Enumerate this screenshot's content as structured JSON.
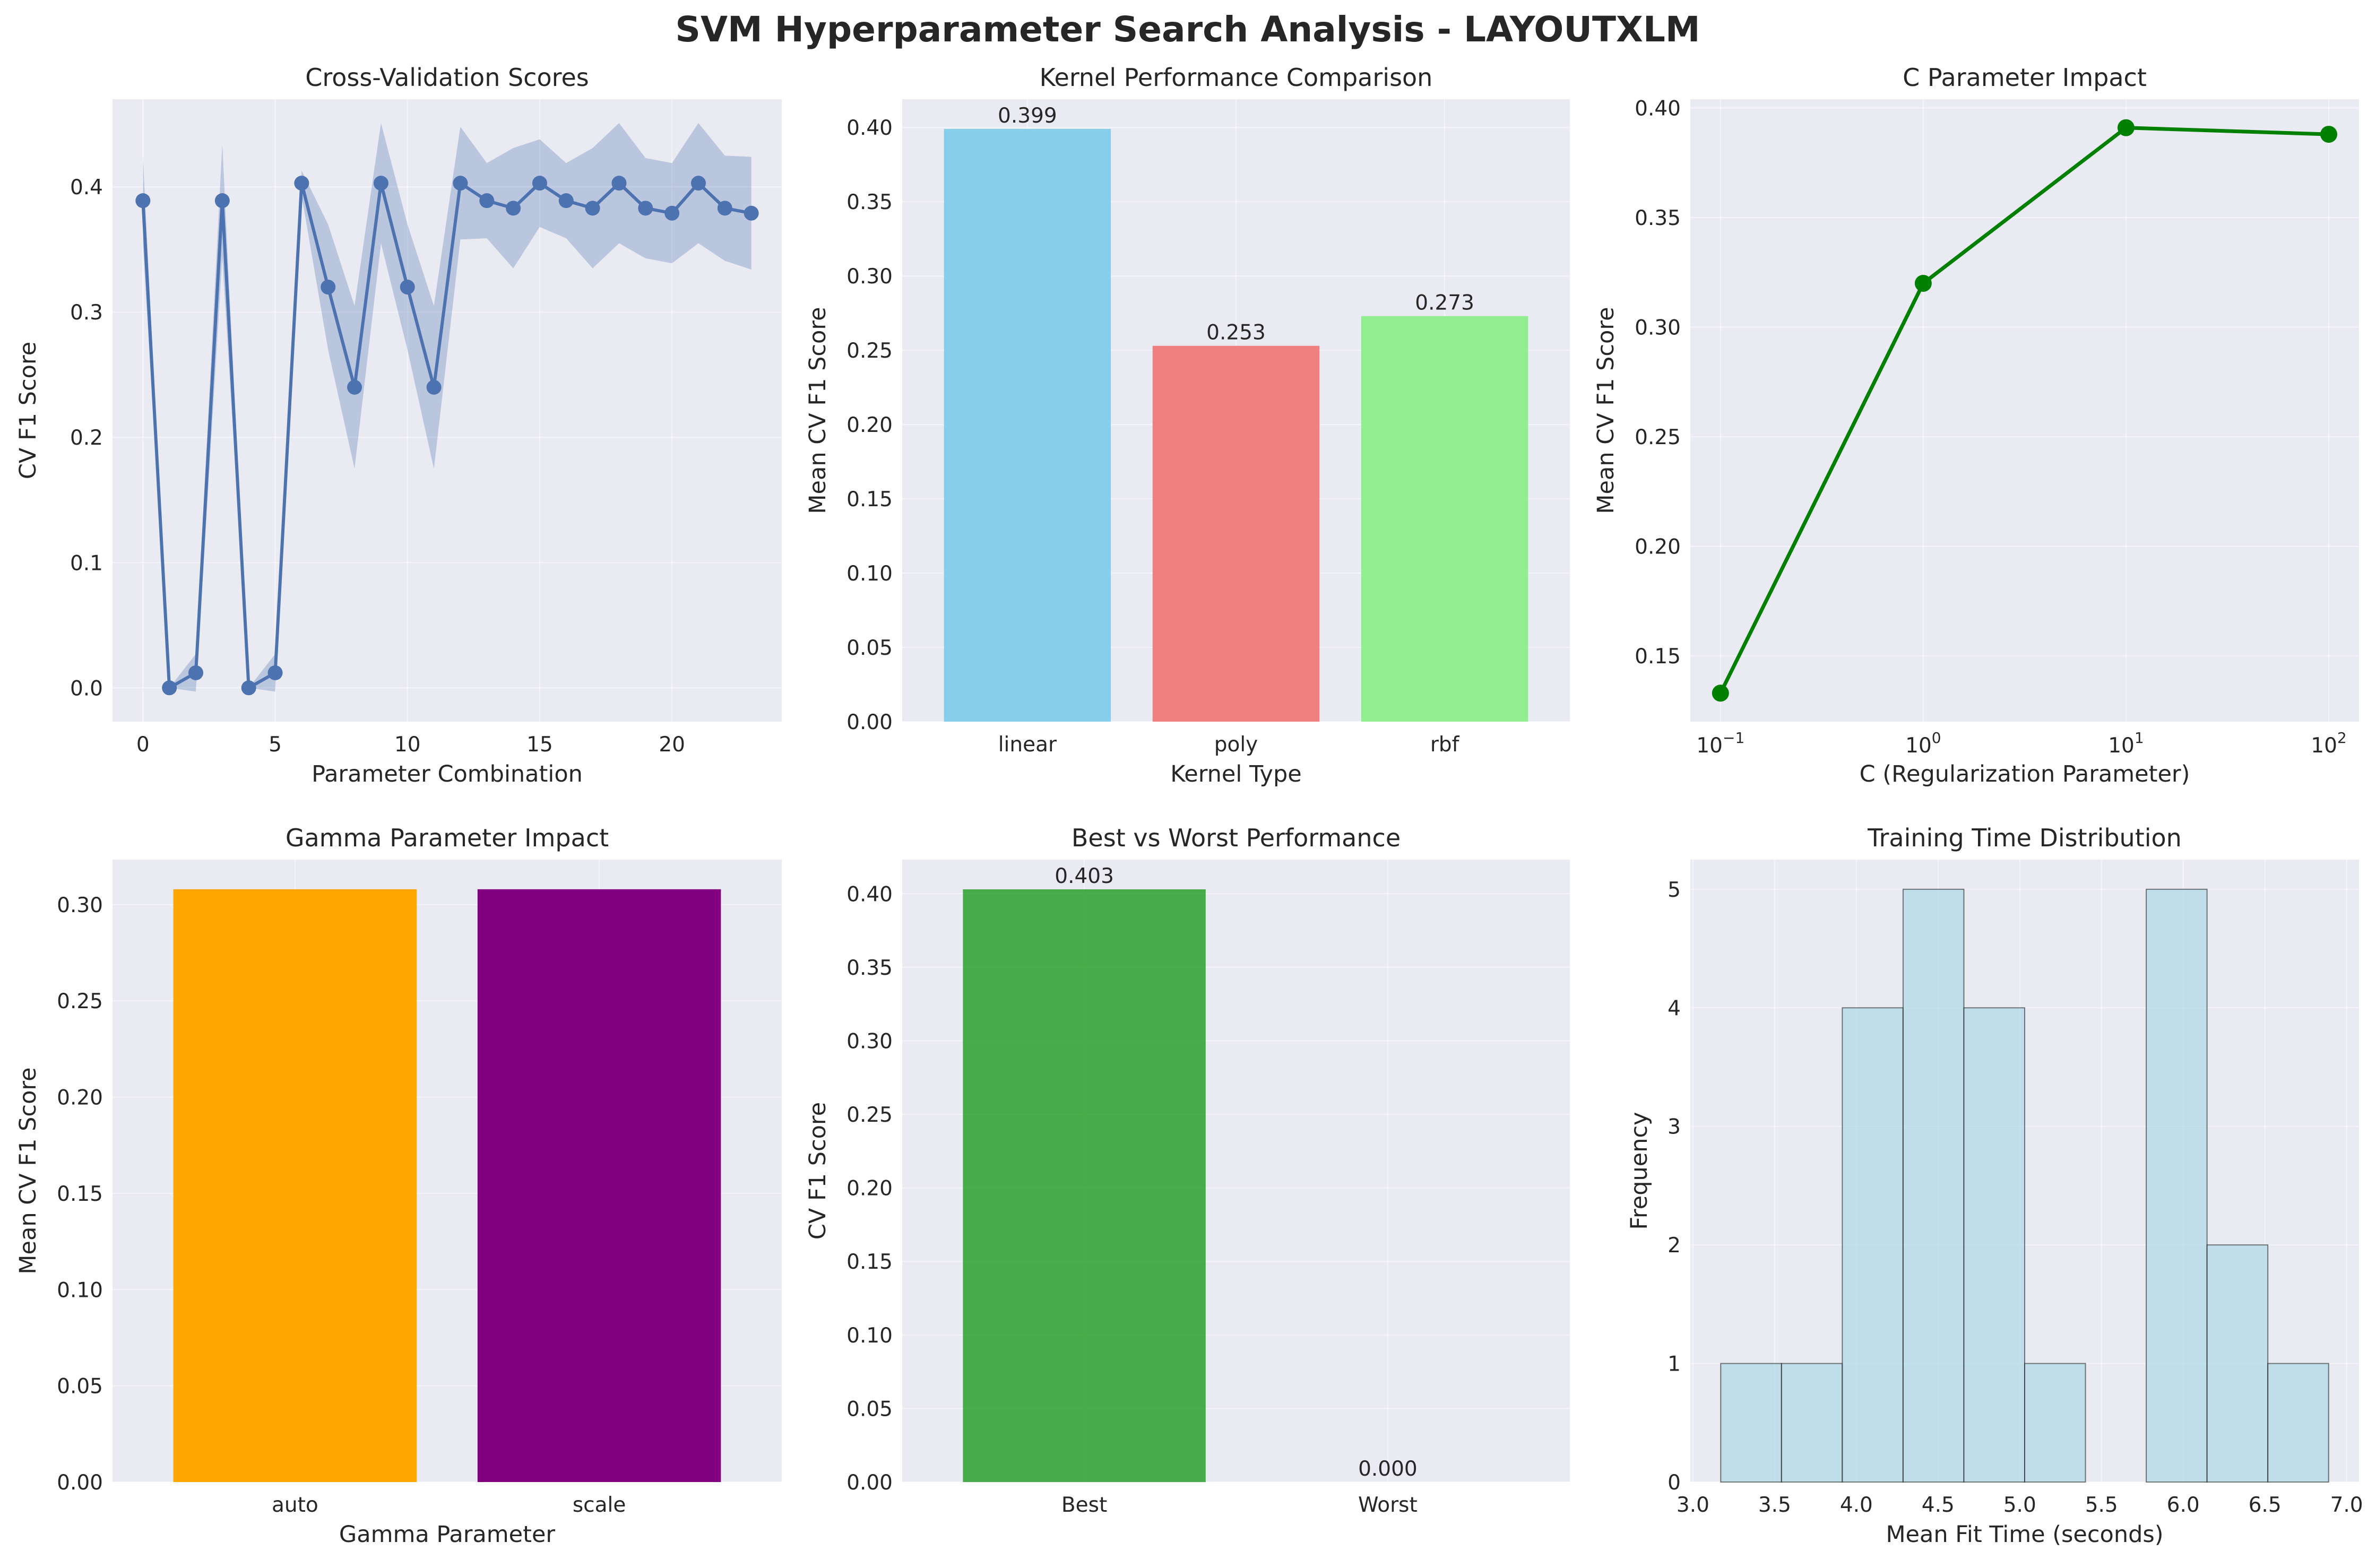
{
  "title": "SVM Hyperparameter Search Analysis - LAYOUTXLM",
  "chart_data": [
    {
      "type": "line",
      "title": "Cross-Validation Scores",
      "xlabel": "Parameter Combination",
      "ylabel": "CV F1 Score",
      "xlim": [
        -1.15,
        24.15
      ],
      "ylim": [
        -0.027,
        0.47
      ],
      "xticks": [
        0,
        5,
        10,
        15,
        20
      ],
      "yticks": [
        0.0,
        0.1,
        0.2,
        0.3,
        0.4
      ],
      "color": "#4c72b0",
      "x": [
        0,
        1,
        2,
        3,
        4,
        5,
        6,
        7,
        8,
        9,
        10,
        11,
        12,
        13,
        14,
        15,
        16,
        17,
        18,
        19,
        20,
        21,
        22,
        23
      ],
      "y": [
        0.389,
        0.0,
        0.012,
        0.389,
        0.0,
        0.012,
        0.403,
        0.32,
        0.24,
        0.403,
        0.32,
        0.24,
        0.403,
        0.389,
        0.383,
        0.403,
        0.389,
        0.383,
        0.403,
        0.383,
        0.379,
        0.403,
        0.383,
        0.379
      ],
      "y_std": [
        0.035,
        0.0,
        0.015,
        0.045,
        0.0,
        0.015,
        0.01,
        0.05,
        0.065,
        0.048,
        0.05,
        0.065,
        0.045,
        0.03,
        0.048,
        0.035,
        0.03,
        0.048,
        0.048,
        0.04,
        0.04,
        0.048,
        0.042,
        0.045
      ],
      "grid": true
    },
    {
      "type": "bar",
      "title": "Kernel Performance Comparison",
      "xlabel": "Kernel Type",
      "ylabel": "Mean CV F1 Score",
      "categories": [
        "linear",
        "poly",
        "rbf"
      ],
      "values": [
        0.399,
        0.253,
        0.273
      ],
      "value_labels": [
        "0.399",
        "0.253",
        "0.273"
      ],
      "colors": [
        "#87ceeb",
        "#f08080",
        "#90ee90"
      ],
      "ylim": [
        0,
        0.419
      ],
      "yticks": [
        0.0,
        0.05,
        0.1,
        0.15,
        0.2,
        0.25,
        0.3,
        0.35,
        0.4
      ],
      "grid": true
    },
    {
      "type": "line",
      "title": "C Parameter Impact",
      "xlabel": "C (Regularization Parameter)",
      "ylabel": "Mean CV F1 Score",
      "xscale": "log",
      "x": [
        0.1,
        1,
        10,
        100
      ],
      "y": [
        0.133,
        0.32,
        0.391,
        0.388
      ],
      "xlim": [
        0.071,
        141
      ],
      "ylim": [
        0.12,
        0.404
      ],
      "xticks": [
        0.1,
        1,
        10,
        100
      ],
      "xtick_labels": [
        {
          "base": "10",
          "exp": "−1"
        },
        {
          "base": "10",
          "exp": "0"
        },
        {
          "base": "10",
          "exp": "1"
        },
        {
          "base": "10",
          "exp": "2"
        }
      ],
      "yticks": [
        0.15,
        0.2,
        0.25,
        0.3,
        0.35,
        0.4
      ],
      "color": "#008000",
      "grid": true
    },
    {
      "type": "bar",
      "title": "Gamma Parameter Impact",
      "xlabel": "Gamma Parameter",
      "ylabel": "Mean CV F1 Score",
      "categories": [
        "auto",
        "scale"
      ],
      "values": [
        0.308,
        0.308
      ],
      "colors": [
        "#ffa500",
        "#800080"
      ],
      "ylim": [
        0,
        0.3234
      ],
      "yticks": [
        0.0,
        0.05,
        0.1,
        0.15,
        0.2,
        0.25,
        0.3
      ],
      "grid": true
    },
    {
      "type": "bar",
      "title": "Best vs Worst Performance",
      "xlabel": "",
      "ylabel": "CV F1 Score",
      "categories": [
        "Best",
        "Worst"
      ],
      "values": [
        0.403,
        0.0
      ],
      "value_labels": [
        "0.403",
        "0.000"
      ],
      "colors": [
        "#2ca02c",
        "#d62728"
      ],
      "opacity": 0.85,
      "ylim": [
        0,
        0.4232
      ],
      "yticks": [
        0.0,
        0.05,
        0.1,
        0.15,
        0.2,
        0.25,
        0.3,
        0.35,
        0.4
      ],
      "grid": true
    },
    {
      "type": "bar",
      "subtype": "histogram",
      "title": "Training Time Distribution",
      "xlabel": "Mean Fit Time (seconds)",
      "ylabel": "Frequency",
      "bin_edges": [
        3.17,
        3.542,
        3.914,
        4.286,
        4.658,
        5.03,
        5.402,
        5.774,
        6.146,
        6.518,
        6.89
      ],
      "counts": [
        1,
        1,
        4,
        5,
        4,
        1,
        0,
        5,
        2,
        1
      ],
      "xlim": [
        2.984,
        7.076
      ],
      "ylim": [
        0,
        5.25
      ],
      "xticks": [
        3.0,
        3.5,
        4.0,
        4.5,
        5.0,
        5.5,
        6.0,
        6.5,
        7.0
      ],
      "xtick_labels": [
        "3.0",
        "3.5",
        "4.0",
        "4.5",
        "5.0",
        "5.5",
        "6.0",
        "6.5",
        "7.0"
      ],
      "yticks": [
        0,
        1,
        2,
        3,
        4,
        5
      ],
      "color": "#add8e6",
      "edgecolor": "#000000",
      "grid": true
    }
  ]
}
